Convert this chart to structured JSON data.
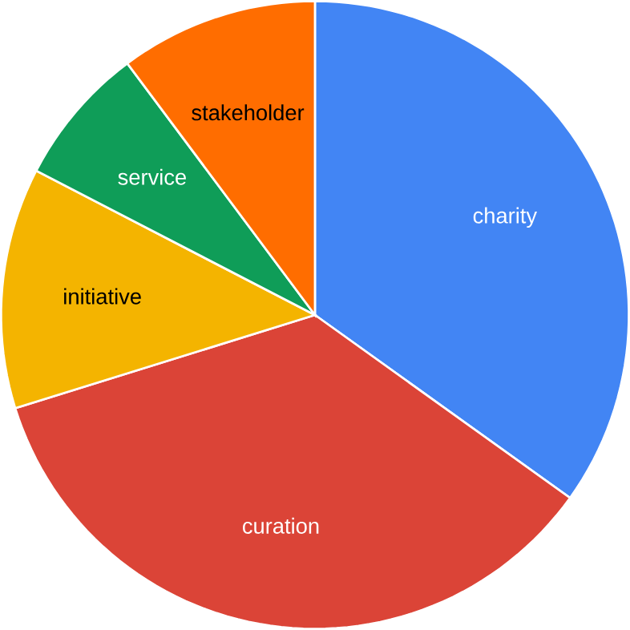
{
  "chart_data": {
    "type": "pie",
    "data_labels": false,
    "categories": [
      "charity",
      "curation",
      "initiative",
      "service",
      "stakeholder"
    ],
    "values": [
      34.9,
      35.3,
      12.4,
      7.2,
      10.2
    ],
    "colors": [
      "#4285f4",
      "#db4437",
      "#f4b400",
      "#0f9d58",
      "#ff6d00"
    ]
  }
}
